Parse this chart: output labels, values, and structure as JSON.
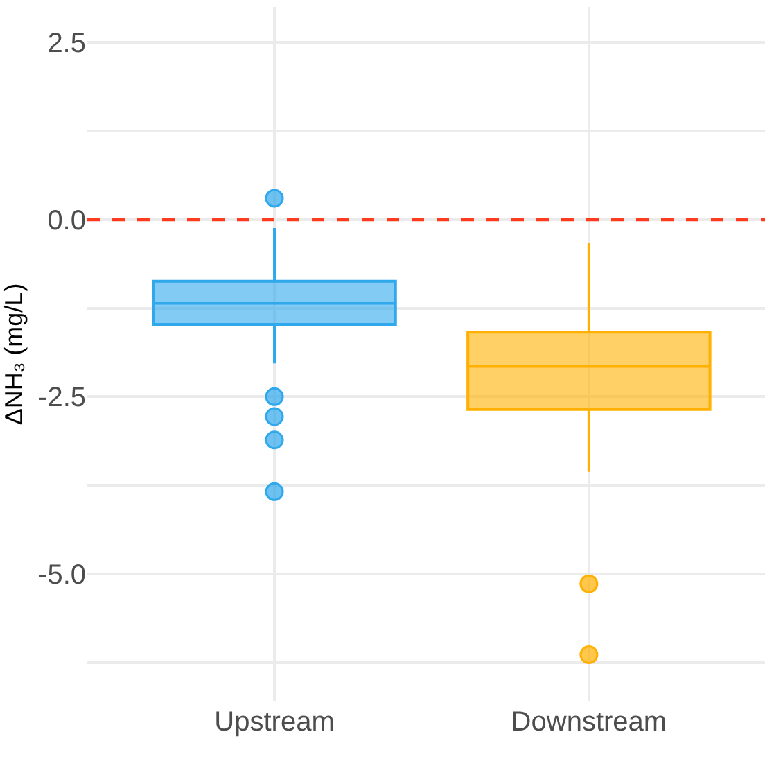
{
  "chart_data": {
    "type": "box",
    "ylabel": "ΔNH₃ (mg/L)",
    "categories": [
      "Upstream",
      "Downstream"
    ],
    "colors": [
      "#2fa8ec",
      "#ffb000"
    ],
    "boxes": [
      {
        "low": -2.03,
        "q1": -1.48,
        "median": -1.18,
        "q3": -0.87,
        "high": -0.12,
        "outliers": [
          0.3,
          -2.5,
          -2.78,
          -3.11,
          -3.84
        ]
      },
      {
        "low": -3.56,
        "q1": -2.68,
        "median": -2.07,
        "q3": -1.59,
        "high": -0.33,
        "outliers": [
          -5.14,
          -6.14
        ]
      }
    ],
    "ylim": [
      -6.8,
      3.0
    ],
    "yticks": [
      {
        "value": -6.25,
        "label": null
      },
      {
        "value": -5,
        "label": "-5.0"
      },
      {
        "value": -3.75,
        "label": null
      },
      -2.5,
      {
        "value": -1.25,
        "label": null
      },
      {
        "value": 0,
        "label": "0.0"
      },
      {
        "value": 1.25,
        "label": null
      },
      2.5
    ],
    "ref_lines": [
      {
        "axis": "y",
        "value": 0,
        "label": null,
        "color": "#ff3b1f",
        "line_style": "dashed"
      }
    ],
    "grid": true
  }
}
